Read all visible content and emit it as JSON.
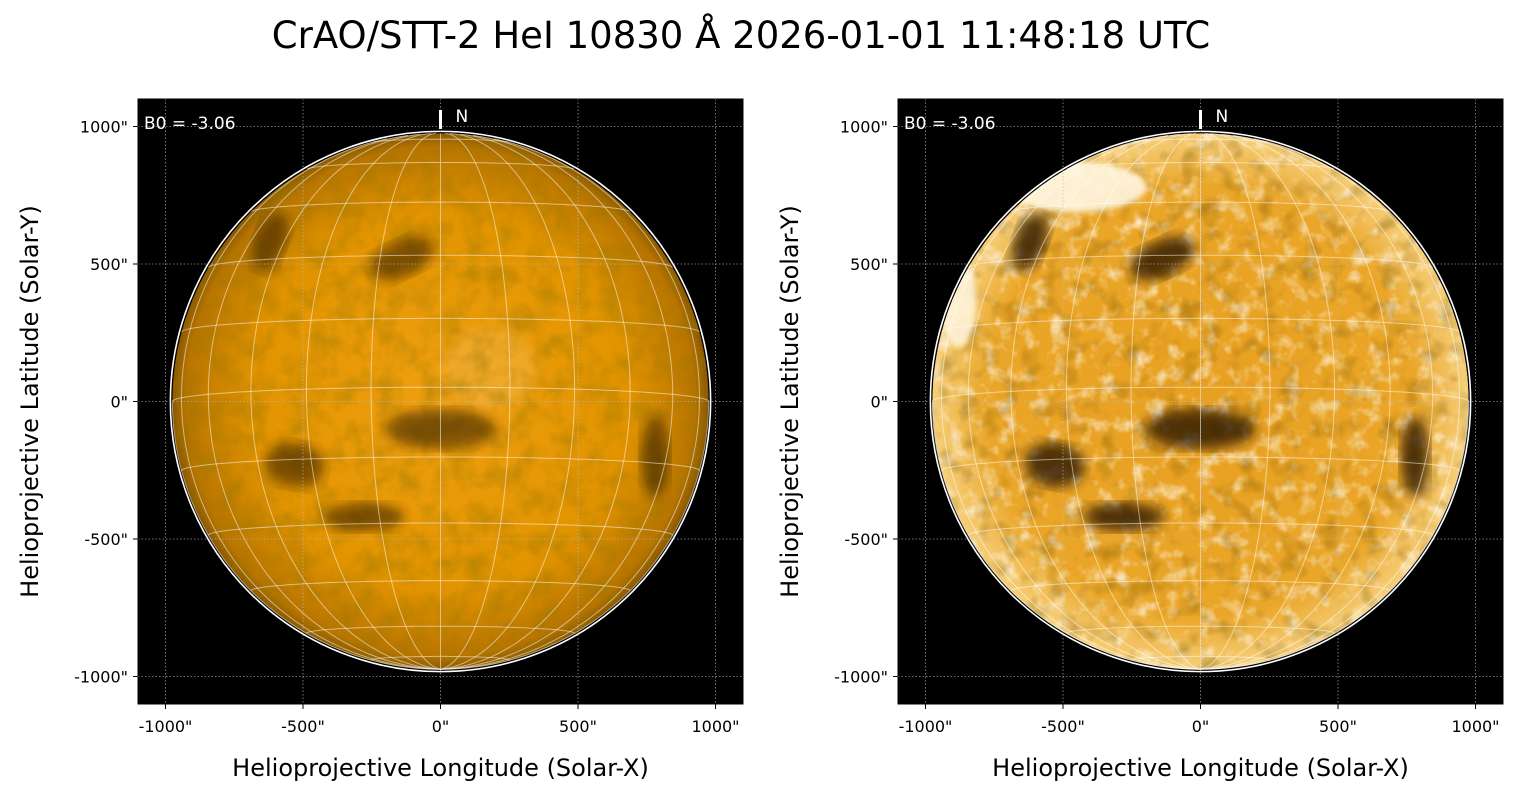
{
  "title": "CrAO/STT-2 HeI 10830 Å 2026-01-01 11:48:18 UTC",
  "colors": {
    "disk_base": "#e29400",
    "disk_bright": "#f8c060",
    "filament_dark": "#2a1400",
    "background": "#000000",
    "grid_line": "#ffffff"
  },
  "panels": [
    {
      "id": "left",
      "annotation": "B0 = -3.06",
      "north_label": "N",
      "xlabel": "Helioprojective Longitude (Solar-X)",
      "ylabel": "Helioprojective Latitude (Solar-Y)",
      "xticks": [
        "-1000\"",
        "-500\"",
        "0\"",
        "500\"",
        "1000\""
      ],
      "yticks": [
        "1000\"",
        "500\"",
        "0\"",
        "-500\"",
        "-1000\""
      ],
      "contrast": "normal"
    },
    {
      "id": "right",
      "annotation": "B0 = -3.06",
      "north_label": "N",
      "xlabel": "Helioprojective Longitude (Solar-X)",
      "ylabel": "Helioprojective Latitude (Solar-Y)",
      "xticks": [
        "-1000\"",
        "-500\"",
        "0\"",
        "500\"",
        "1000\""
      ],
      "yticks": [
        "1000\"",
        "500\"",
        "0\"",
        "-500\"",
        "-1000\""
      ],
      "contrast": "enhanced"
    }
  ],
  "axis": {
    "xlim": [
      -1100,
      1100
    ],
    "ylim": [
      -1100,
      1100
    ],
    "tick_values": [
      -1000,
      -500,
      0,
      500,
      1000
    ],
    "solar_radius_arcsec": 975
  },
  "features": [
    {
      "name": "filament-north-1",
      "x": -140,
      "y": 520
    },
    {
      "name": "filament-north-2",
      "x": -620,
      "y": 580
    },
    {
      "name": "filament-center",
      "x": 0,
      "y": -100
    },
    {
      "name": "filament-east",
      "x": -530,
      "y": -230
    },
    {
      "name": "filament-west",
      "x": 780,
      "y": -200
    },
    {
      "name": "filament-south",
      "x": -280,
      "y": -420
    }
  ]
}
